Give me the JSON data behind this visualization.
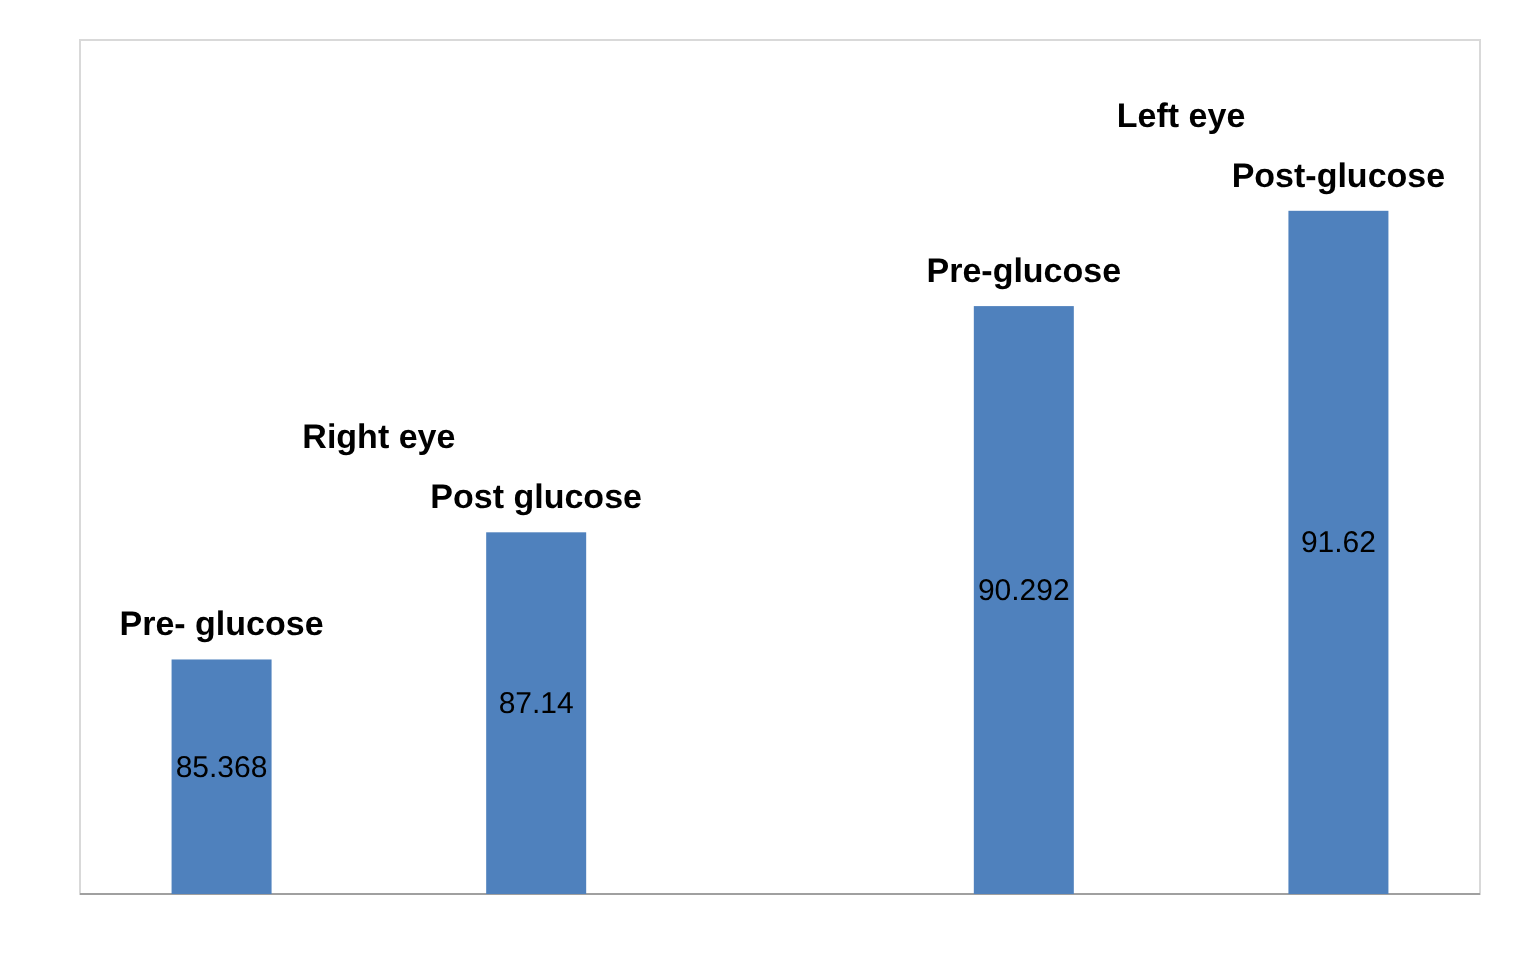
{
  "chart_data": {
    "type": "bar",
    "categories": [
      null,
      null,
      null,
      null
    ],
    "values": [
      85.368,
      87.14,
      90.292,
      91.62
    ],
    "color": "#4f81bd",
    "ylim": [
      82.1,
      94
    ],
    "data_labels": true,
    "annotations": [
      "Right eye",
      "Pre- glucose",
      "Post glucose",
      "Left eye",
      "Pre-glucose",
      "Post-glucose"
    ]
  }
}
